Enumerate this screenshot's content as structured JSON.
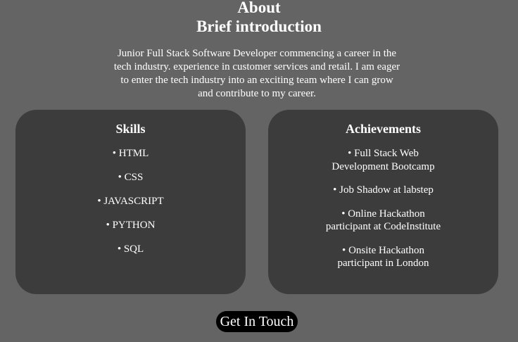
{
  "header": {
    "title": "About",
    "subtitle": "Brief introduction"
  },
  "intro": {
    "text": "Junior Full Stack Software Developer commencing a career in the tech industry. experience in customer services and retail. I am eager to enter the tech industry into an exciting team where I can grow and contribute to my career."
  },
  "skills": {
    "title": "Skills",
    "items": [
      "HTML",
      "CSS",
      "JAVASCRIPT",
      "PYTHON",
      "SQL"
    ]
  },
  "achievements": {
    "title": "Achievements",
    "items": [
      "Full Stack Web Development Bootcamp",
      "Job Shadow at labstep",
      "Online Hackathon participant at CodeInstitute",
      "Onsite Hackathon participant in London"
    ]
  },
  "cta": {
    "label": "Get In Touch"
  },
  "colors": {
    "background": "#646464",
    "card": "#3c3c3c",
    "button": "#000000",
    "text": "#ffffff"
  }
}
